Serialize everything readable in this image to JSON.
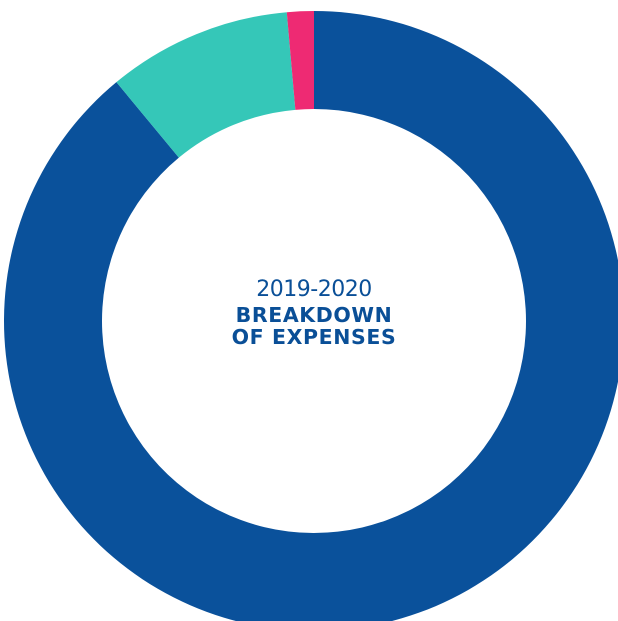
{
  "chart_data": {
    "type": "pie",
    "variant": "donut",
    "title_period": "2019-2020",
    "title_lines": [
      "BREAKDOWN",
      "OF EXPENSES"
    ],
    "categories": [
      "",
      "",
      ""
    ],
    "values": [
      89.0,
      9.6,
      1.4
    ],
    "colors": [
      "#0a519b",
      "#35c7b8",
      "#ee2a73"
    ],
    "start_angle_deg": 0,
    "direction": "clockwise",
    "legend": "none"
  }
}
